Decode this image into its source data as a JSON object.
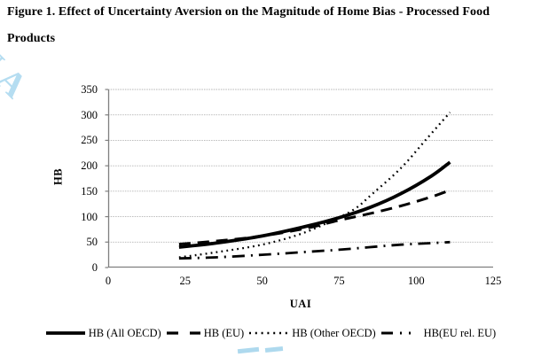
{
  "figure": {
    "title_line1": "Figure 1. Effect of Uncertainty Aversion on the Magnitude of Home Bias - Processed Food",
    "title_line2": "Products"
  },
  "watermark": {
    "text": "UA",
    "color": "#b5ddf1"
  },
  "colors": {
    "line": "#000000",
    "gridline": "#b3b3b3",
    "spine": "#7f7f7f",
    "background": "#ffffff"
  },
  "chart_data": {
    "type": "line",
    "title": "",
    "xlabel": "UAI",
    "ylabel": "HB",
    "xlim": [
      0,
      125
    ],
    "ylim": [
      0,
      350
    ],
    "xticks": [
      0,
      25,
      50,
      75,
      100,
      125
    ],
    "yticks": [
      0,
      50,
      100,
      150,
      200,
      250,
      300,
      350
    ],
    "grid": true,
    "legend_position": "bottom",
    "series": [
      {
        "name": "HB (All OECD)",
        "style": "solid",
        "x": [
          23,
          35,
          50,
          65,
          75,
          85,
          95,
          105,
          111
        ],
        "y": [
          40,
          48,
          62,
          82,
          98,
          118,
          145,
          180,
          207
        ]
      },
      {
        "name": "HB (EU)",
        "style": "dashed",
        "x": [
          23,
          35,
          50,
          65,
          75,
          85,
          95,
          105,
          111
        ],
        "y": [
          46,
          52,
          62,
          78,
          93,
          106,
          121,
          139,
          152
        ]
      },
      {
        "name": "HB (Other OECD)",
        "style": "dotted",
        "x": [
          23,
          35,
          50,
          62,
          72,
          80,
          86,
          95,
          103,
          111
        ],
        "y": [
          20,
          30,
          45,
          65,
          90,
          115,
          146,
          195,
          250,
          305
        ]
      },
      {
        "name": "HB(EU rel. EU)",
        "style": "dashdot",
        "x": [
          23,
          35,
          50,
          65,
          75,
          85,
          95,
          105,
          111
        ],
        "y": [
          18,
          20,
          25,
          31,
          35,
          40,
          45,
          48,
          50
        ]
      }
    ]
  }
}
